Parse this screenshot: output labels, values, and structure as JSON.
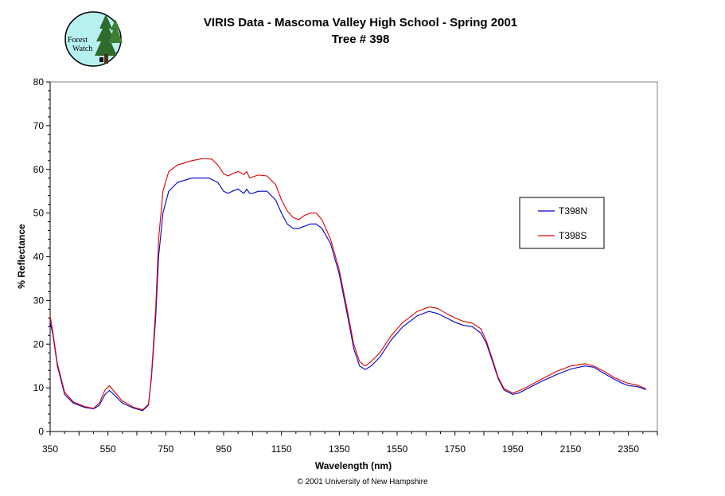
{
  "header": {
    "title": "VIRIS Data - Mascoma Valley High School - Spring 2001",
    "subtitle": "Tree # 398"
  },
  "logo": {
    "line1": "Forest",
    "line2": "Watch",
    "icon": "tree-logo-icon"
  },
  "footer": "© 2001 University of New Hampshire",
  "colors": {
    "T398N": "#0000cc",
    "T398S": "#dd0000",
    "plot_border": "#808080",
    "logo_fill": "#b7f0f0"
  },
  "chart_data": {
    "type": "line",
    "title": "VIRIS Data - Mascoma Valley High School - Spring 2001",
    "subtitle": "Tree # 398",
    "xlabel": "Wavelength (nm)",
    "ylabel": "% Reflectance",
    "xlim": [
      350,
      2450
    ],
    "ylim": [
      0,
      80
    ],
    "xticks": [
      350,
      550,
      750,
      950,
      1150,
      1350,
      1550,
      1750,
      1950,
      2150,
      2350
    ],
    "yticks": [
      0,
      10,
      20,
      30,
      40,
      50,
      60,
      70,
      80
    ],
    "grid": false,
    "legend": "right",
    "series": [
      {
        "name": "T398N",
        "color": "#0000cc",
        "x": [
          350,
          360,
          375,
          400,
          430,
          470,
          500,
          520,
          540,
          555,
          570,
          600,
          640,
          670,
          690,
          700,
          715,
          725,
          740,
          760,
          790,
          840,
          900,
          930,
          950,
          965,
          980,
          1000,
          1010,
          1020,
          1030,
          1040,
          1050,
          1070,
          1100,
          1130,
          1150,
          1170,
          1190,
          1210,
          1230,
          1250,
          1270,
          1290,
          1320,
          1350,
          1380,
          1400,
          1420,
          1440,
          1460,
          1490,
          1530,
          1570,
          1620,
          1660,
          1690,
          1720,
          1750,
          1780,
          1810,
          1840,
          1860,
          1880,
          1900,
          1920,
          1950,
          1970,
          2000,
          2050,
          2100,
          2150,
          2200,
          2230,
          2260,
          2300,
          2330,
          2350,
          2380,
          2410
        ],
        "y": [
          25,
          22,
          15,
          8.5,
          6.5,
          5.5,
          5.2,
          6,
          8.5,
          9.4,
          8.5,
          6.5,
          5.3,
          4.8,
          6,
          12,
          26,
          40,
          50,
          55,
          57,
          58,
          58,
          57,
          55,
          54.5,
          55,
          55.5,
          55,
          54.5,
          55.5,
          54.5,
          54.5,
          55,
          55,
          53,
          50,
          47.5,
          46.5,
          46.5,
          47,
          47.5,
          47.5,
          46.5,
          43,
          36,
          26,
          19,
          15,
          14.2,
          15,
          17,
          21,
          24,
          26.5,
          27.5,
          27,
          26,
          25,
          24.3,
          24,
          22.5,
          20,
          16,
          12,
          9.5,
          8.5,
          8.8,
          9.8,
          11.5,
          13,
          14.3,
          15,
          14.7,
          13.5,
          12,
          11,
          10.5,
          10.3,
          9.6
        ]
      },
      {
        "name": "T398S",
        "color": "#dd0000",
        "x": [
          350,
          360,
          375,
          400,
          430,
          470,
          500,
          520,
          540,
          555,
          570,
          600,
          640,
          670,
          690,
          700,
          715,
          725,
          740,
          760,
          790,
          840,
          880,
          910,
          930,
          950,
          965,
          980,
          1000,
          1010,
          1020,
          1030,
          1040,
          1050,
          1070,
          1100,
          1130,
          1150,
          1170,
          1190,
          1210,
          1230,
          1250,
          1270,
          1290,
          1320,
          1350,
          1380,
          1400,
          1420,
          1440,
          1460,
          1490,
          1530,
          1570,
          1620,
          1660,
          1690,
          1720,
          1750,
          1780,
          1810,
          1840,
          1860,
          1880,
          1900,
          1920,
          1950,
          1970,
          2000,
          2050,
          2100,
          2150,
          2200,
          2230,
          2260,
          2300,
          2330,
          2350,
          2380,
          2410
        ],
        "y": [
          26.5,
          22.5,
          15.5,
          9,
          6.8,
          5.7,
          5.3,
          6.5,
          9.5,
          10.5,
          9.3,
          7,
          5.5,
          5,
          6.2,
          12.5,
          28,
          44,
          55,
          59.5,
          61,
          62,
          62.5,
          62.3,
          61,
          59,
          58.5,
          59,
          59.5,
          59.2,
          58.8,
          59.5,
          58,
          58.3,
          58.7,
          58.5,
          56.5,
          53,
          50.5,
          49,
          48.5,
          49.5,
          50,
          50,
          48.5,
          44,
          37,
          27,
          20,
          16,
          15,
          16,
          18,
          22,
          25,
          27.5,
          28.5,
          28.2,
          27,
          26,
          25.2,
          24.8,
          23.5,
          20.5,
          16.5,
          12.3,
          9.8,
          8.8,
          9.3,
          10.2,
          12,
          13.7,
          15,
          15.5,
          15,
          14,
          12.4,
          11.5,
          11,
          10.6,
          9.8
        ]
      }
    ]
  }
}
